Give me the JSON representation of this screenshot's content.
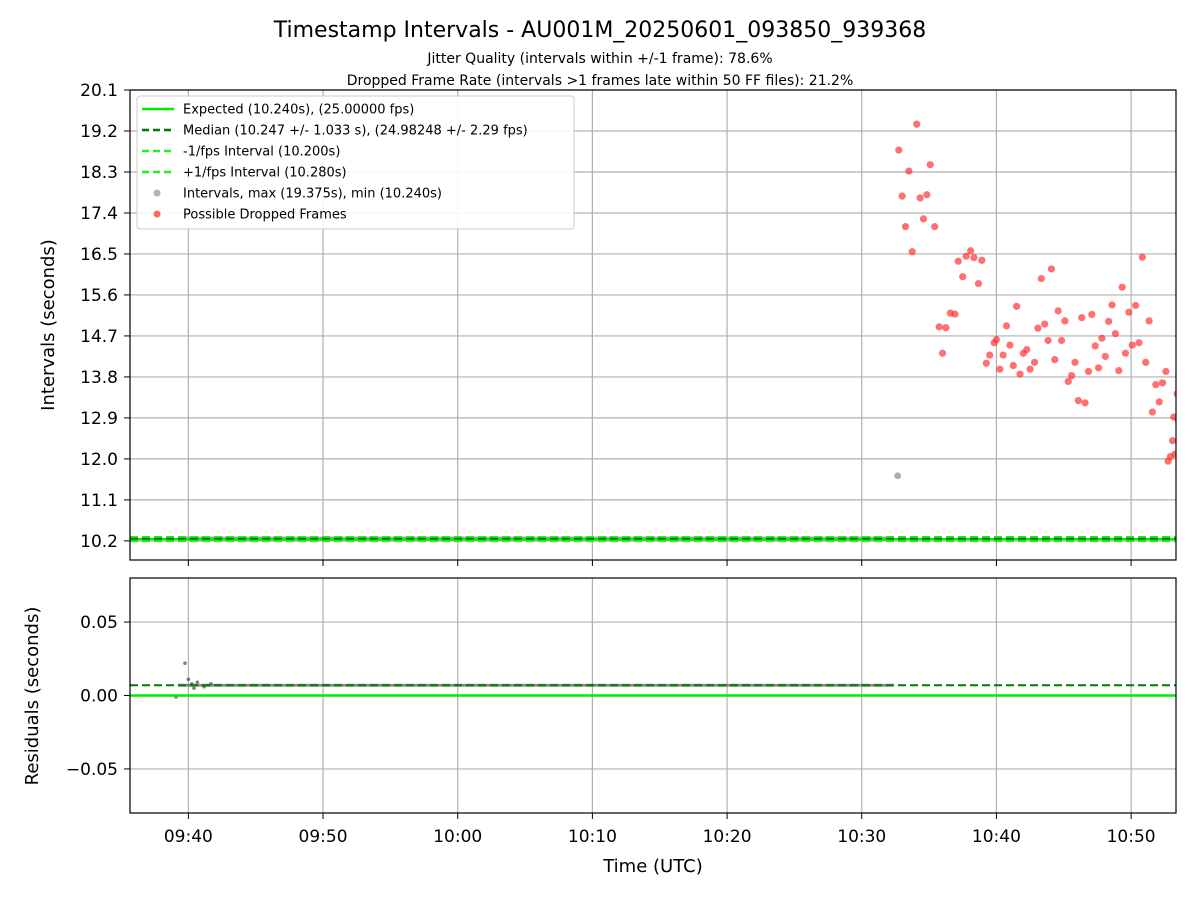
{
  "title": "Timestamp Intervals - AU001M_20250601_093850_939368",
  "subtitle1": "Jitter Quality (intervals within +/-1 frame): 78.6%",
  "subtitle2": "Dropped Frame Rate (intervals >1 frames late within 50 FF files): 21.2%",
  "colors": {
    "expected": "#00ee00",
    "median": "#007a00",
    "fps_interval": "#22ee22",
    "intervals": "#999999",
    "dropped": "#ff3333",
    "residuals": "#555555",
    "grid": "#b0b0b0"
  },
  "chart_data": [
    {
      "type": "scatter",
      "name": "intervals-panel",
      "xlabel": "",
      "ylabel": "Intervals (seconds)",
      "xlim": [
        "09:35:40",
        "10:53:20"
      ],
      "ylim": [
        9.78,
        20.1
      ],
      "y_ticks": [
        "10.2",
        "11.1",
        "12.0",
        "12.9",
        "13.8",
        "14.7",
        "15.6",
        "16.5",
        "17.4",
        "18.3",
        "19.2",
        "20.1"
      ],
      "x_ticks": [
        "09:40",
        "09:50",
        "10:00",
        "10:10",
        "10:20",
        "10:30",
        "10:40",
        "10:50"
      ],
      "grid": true,
      "legend_position": "top-left",
      "legend": [
        {
          "key": "expected",
          "label": "Expected (10.240s), (25.00000 fps)",
          "style": "solid"
        },
        {
          "key": "median",
          "label": "Median (10.247 +/- 1.033 s), (24.98248 +/- 2.29 fps)",
          "style": "dashed"
        },
        {
          "key": "minus_fps",
          "label": "-1/fps Interval (10.200s)",
          "style": "dashed"
        },
        {
          "key": "plus_fps",
          "label": "+1/fps Interval (10.280s)",
          "style": "dashed"
        },
        {
          "key": "intervals",
          "label": "Intervals, max (19.375s), min (10.240s)",
          "style": "dot"
        },
        {
          "key": "dropped",
          "label": "Possible Dropped Frames",
          "style": "dot"
        }
      ],
      "reference_lines": {
        "expected": 10.24,
        "median": 10.247,
        "minus_fps": 10.2,
        "plus_fps": 10.28
      },
      "normal_intervals": {
        "start": "09:39:20",
        "end": "10:32:20",
        "step_seconds": 10.24,
        "value": 10.247
      },
      "gray_outliers": [
        {
          "x": "10:32:40",
          "y": 11.63
        }
      ],
      "dropped_frames": [
        {
          "x": "10:32:45",
          "y": 18.78
        },
        {
          "x": "10:33:00",
          "y": 17.77
        },
        {
          "x": "10:33:15",
          "y": 17.1
        },
        {
          "x": "10:33:30",
          "y": 18.32
        },
        {
          "x": "10:33:45",
          "y": 16.55
        },
        {
          "x": "10:34:05",
          "y": 19.35
        },
        {
          "x": "10:34:20",
          "y": 17.73
        },
        {
          "x": "10:34:35",
          "y": 17.27
        },
        {
          "x": "10:34:50",
          "y": 17.8
        },
        {
          "x": "10:35:05",
          "y": 18.46
        },
        {
          "x": "10:35:25",
          "y": 17.1
        },
        {
          "x": "10:35:45",
          "y": 14.9
        },
        {
          "x": "10:36:00",
          "y": 14.32
        },
        {
          "x": "10:36:15",
          "y": 14.88
        },
        {
          "x": "10:36:35",
          "y": 15.2
        },
        {
          "x": "10:36:55",
          "y": 15.18
        },
        {
          "x": "10:37:10",
          "y": 16.34
        },
        {
          "x": "10:37:30",
          "y": 16.0
        },
        {
          "x": "10:37:45",
          "y": 16.45
        },
        {
          "x": "10:38:05",
          "y": 16.57
        },
        {
          "x": "10:38:20",
          "y": 16.42
        },
        {
          "x": "10:38:40",
          "y": 15.85
        },
        {
          "x": "10:38:55",
          "y": 16.36
        },
        {
          "x": "10:39:15",
          "y": 14.1
        },
        {
          "x": "10:39:30",
          "y": 14.28
        },
        {
          "x": "10:39:50",
          "y": 14.55
        },
        {
          "x": "10:40:00",
          "y": 14.62
        },
        {
          "x": "10:40:15",
          "y": 13.97
        },
        {
          "x": "10:40:30",
          "y": 14.28
        },
        {
          "x": "10:40:45",
          "y": 14.92
        },
        {
          "x": "10:41:00",
          "y": 14.5
        },
        {
          "x": "10:41:15",
          "y": 14.05
        },
        {
          "x": "10:41:30",
          "y": 15.35
        },
        {
          "x": "10:41:45",
          "y": 13.86
        },
        {
          "x": "10:42:00",
          "y": 14.32
        },
        {
          "x": "10:42:15",
          "y": 14.4
        },
        {
          "x": "10:42:30",
          "y": 13.97
        },
        {
          "x": "10:42:50",
          "y": 14.12
        },
        {
          "x": "10:43:05",
          "y": 14.87
        },
        {
          "x": "10:43:20",
          "y": 15.96
        },
        {
          "x": "10:43:35",
          "y": 14.96
        },
        {
          "x": "10:43:50",
          "y": 14.6
        },
        {
          "x": "10:44:05",
          "y": 16.17
        },
        {
          "x": "10:44:20",
          "y": 14.18
        },
        {
          "x": "10:44:35",
          "y": 15.25
        },
        {
          "x": "10:44:50",
          "y": 14.6
        },
        {
          "x": "10:45:05",
          "y": 15.03
        },
        {
          "x": "10:45:20",
          "y": 13.7
        },
        {
          "x": "10:45:35",
          "y": 13.83
        },
        {
          "x": "10:45:50",
          "y": 14.12
        },
        {
          "x": "10:46:05",
          "y": 13.28
        },
        {
          "x": "10:46:20",
          "y": 15.1
        },
        {
          "x": "10:46:35",
          "y": 13.23
        },
        {
          "x": "10:46:50",
          "y": 13.92
        },
        {
          "x": "10:47:05",
          "y": 15.17
        },
        {
          "x": "10:47:20",
          "y": 14.48
        },
        {
          "x": "10:47:35",
          "y": 14.0
        },
        {
          "x": "10:47:50",
          "y": 14.65
        },
        {
          "x": "10:48:05",
          "y": 14.25
        },
        {
          "x": "10:48:20",
          "y": 15.02
        },
        {
          "x": "10:48:35",
          "y": 15.38
        },
        {
          "x": "10:48:50",
          "y": 14.75
        },
        {
          "x": "10:49:05",
          "y": 13.94
        },
        {
          "x": "10:49:20",
          "y": 15.77
        },
        {
          "x": "10:49:35",
          "y": 14.32
        },
        {
          "x": "10:49:50",
          "y": 15.22
        },
        {
          "x": "10:50:05",
          "y": 14.5
        },
        {
          "x": "10:50:20",
          "y": 15.37
        },
        {
          "x": "10:50:35",
          "y": 14.55
        },
        {
          "x": "10:50:50",
          "y": 16.43
        },
        {
          "x": "10:51:05",
          "y": 14.12
        },
        {
          "x": "10:51:20",
          "y": 15.03
        },
        {
          "x": "10:51:35",
          "y": 13.03
        },
        {
          "x": "10:51:50",
          "y": 13.63
        },
        {
          "x": "10:52:05",
          "y": 13.25
        },
        {
          "x": "10:52:20",
          "y": 13.67
        },
        {
          "x": "10:52:35",
          "y": 13.92
        },
        {
          "x": "10:52:45",
          "y": 11.95
        },
        {
          "x": "10:52:55",
          "y": 12.05
        },
        {
          "x": "10:53:05",
          "y": 12.4
        },
        {
          "x": "10:53:10",
          "y": 12.92
        },
        {
          "x": "10:53:15",
          "y": 12.1
        },
        {
          "x": "10:53:25",
          "y": 13.43
        },
        {
          "x": "10:53:30",
          "y": 12.86
        }
      ]
    },
    {
      "type": "scatter",
      "name": "residuals-panel",
      "xlabel": "Time (UTC)",
      "ylabel": "Residuals (seconds)",
      "xlim": [
        "09:35:40",
        "10:53:20"
      ],
      "ylim": [
        -0.08,
        0.08
      ],
      "y_ticks": [
        "−0.05",
        "0.00",
        "0.05"
      ],
      "y_tick_values": [
        -0.05,
        0.0,
        0.05
      ],
      "x_ticks": [
        "09:40",
        "09:50",
        "10:00",
        "10:10",
        "10:20",
        "10:30",
        "10:40",
        "10:50"
      ],
      "grid": true,
      "reference_lines": {
        "expected": 0.0,
        "median": 0.007
      },
      "residual_points": {
        "start": "09:39:20",
        "end": "10:32:20",
        "typical": 0.007
      },
      "early_outliers": [
        {
          "x": "09:39:05",
          "y": -0.001
        },
        {
          "x": "09:39:45",
          "y": 0.022
        },
        {
          "x": "09:40:00",
          "y": 0.011
        },
        {
          "x": "09:40:15",
          "y": 0.008
        },
        {
          "x": "09:40:25",
          "y": 0.005
        },
        {
          "x": "09:40:40",
          "y": 0.009
        },
        {
          "x": "09:41:10",
          "y": 0.006
        },
        {
          "x": "09:41:40",
          "y": 0.008
        }
      ]
    }
  ]
}
